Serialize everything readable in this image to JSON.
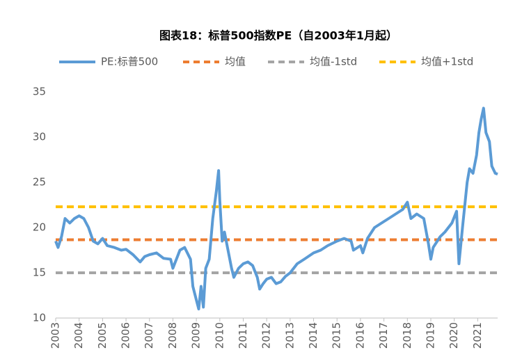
{
  "chart_data": {
    "type": "line",
    "title": "图表18：标普500指数PE（自2003年1月起）",
    "xlim": [
      2003,
      2021.85
    ],
    "xticks": [
      2003,
      2004,
      2005,
      2006,
      2007,
      2008,
      2009,
      2010,
      2011,
      2012,
      2013,
      2014,
      2015,
      2016,
      2017,
      2018,
      2019,
      2020,
      2021
    ],
    "ylim": [
      10,
      35
    ],
    "yticks": [
      10,
      15,
      20,
      25,
      30,
      35
    ],
    "series": [
      {
        "name": "PE:标普500",
        "color": "#5b9bd5",
        "x": [
          2003.0,
          2003.1,
          2003.25,
          2003.4,
          2003.6,
          2003.8,
          2004.0,
          2004.2,
          2004.4,
          2004.6,
          2004.8,
          2005.0,
          2005.2,
          2005.5,
          2005.8,
          2006.0,
          2006.3,
          2006.6,
          2006.8,
          2007.0,
          2007.3,
          2007.6,
          2007.9,
          2008.0,
          2008.3,
          2008.5,
          2008.75,
          2008.85,
          2009.0,
          2009.1,
          2009.2,
          2009.3,
          2009.4,
          2009.55,
          2009.7,
          2009.85,
          2009.95,
          2010.0,
          2010.1,
          2010.2,
          2010.35,
          2010.5,
          2010.6,
          2010.8,
          2011.0,
          2011.2,
          2011.4,
          2011.6,
          2011.7,
          2011.85,
          2012.0,
          2012.2,
          2012.4,
          2012.6,
          2012.8,
          2013.0,
          2013.3,
          2013.6,
          2014.0,
          2014.3,
          2014.6,
          2015.0,
          2015.3,
          2015.6,
          2015.7,
          2016.0,
          2016.1,
          2016.3,
          2016.6,
          2016.9,
          2017.2,
          2017.5,
          2017.8,
          2018.0,
          2018.15,
          2018.4,
          2018.7,
          2018.9,
          2019.0,
          2019.1,
          2019.4,
          2019.6,
          2019.9,
          2020.1,
          2020.2,
          2020.35,
          2020.55,
          2020.65,
          2020.8,
          2020.95,
          2021.05,
          2021.15,
          2021.25,
          2021.35,
          2021.5,
          2021.6,
          2021.75,
          2021.85
        ],
        "values": [
          18.5,
          17.8,
          19,
          21,
          20.5,
          21.0,
          21.3,
          21.0,
          20,
          18.5,
          18.2,
          18.8,
          18.0,
          17.8,
          17.5,
          17.6,
          17.0,
          16.2,
          16.8,
          17.0,
          17.2,
          16.6,
          16.5,
          15.5,
          17.5,
          17.8,
          16.5,
          13.5,
          12.0,
          11.0,
          13.5,
          11.2,
          15.5,
          16.5,
          21.0,
          24,
          26.3,
          23,
          18.5,
          19.5,
          17.5,
          15.5,
          14.5,
          15.5,
          16.0,
          16.2,
          15.8,
          14.5,
          13.2,
          13.8,
          14.3,
          14.5,
          13.8,
          14.0,
          14.6,
          15.0,
          16.0,
          16.5,
          17.2,
          17.5,
          18.0,
          18.5,
          18.8,
          18.5,
          17.5,
          18.0,
          17.2,
          18.8,
          20.0,
          20.5,
          21.0,
          21.5,
          22.0,
          22.8,
          21.0,
          21.5,
          21.0,
          18.2,
          16.5,
          17.8,
          19.0,
          19.5,
          20.5,
          21.8,
          16.0,
          20.0,
          25.0,
          26.5,
          26,
          28,
          30.5,
          32.0,
          33.2,
          30.5,
          29.5,
          26.8,
          26.0,
          25.9
        ]
      },
      {
        "name": "均值",
        "color": "#ed7d31",
        "value": 18.65
      },
      {
        "name": "均值-1std",
        "color": "#a5a5a5",
        "value": 15.0
      },
      {
        "name": "均值+1std",
        "color": "#ffc000",
        "value": 22.3
      }
    ]
  }
}
